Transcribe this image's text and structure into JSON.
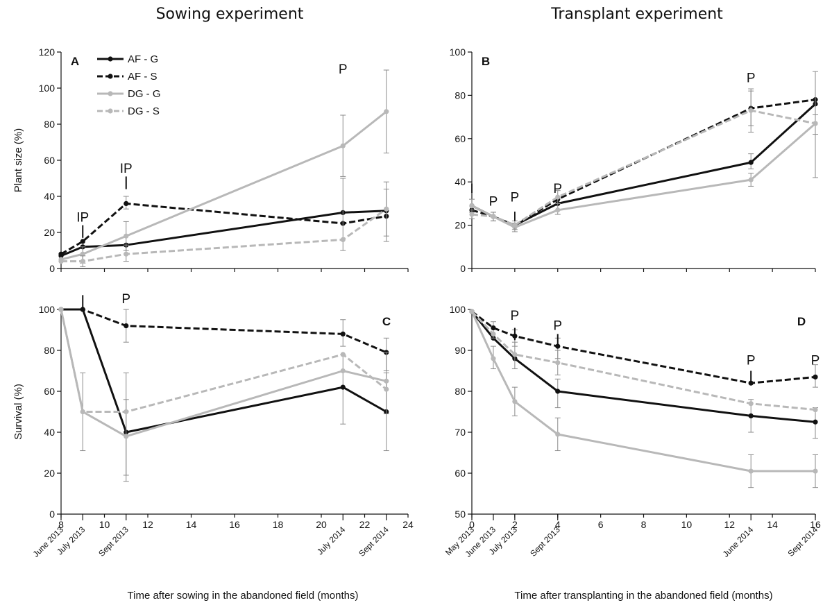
{
  "figure": {
    "left_title": "Sowing experiment",
    "right_title": "Transplant experiment",
    "colors": {
      "AF - G": "#111111",
      "AF - S": "#111111",
      "DG - G": "#b8b8b8",
      "DG - S": "#b8b8b8"
    },
    "dashed": {
      "AF - G": false,
      "AF - S": true,
      "DG - G": false,
      "DG - S": true
    },
    "legend": {
      "panel": "A",
      "placement": "top-left",
      "entries": [
        "AF - G",
        "AF - S",
        "DG - G",
        "DG - S"
      ]
    }
  },
  "chart_data": [
    {
      "panel": "A",
      "type": "line",
      "title": "",
      "xlabel": "",
      "ylabel": "Plant size (%)",
      "xlim": [
        8,
        24
      ],
      "ylim": [
        0,
        120
      ],
      "yticks": [
        0,
        20,
        40,
        60,
        80,
        100,
        120
      ],
      "xticks": [
        8,
        10,
        12,
        14,
        16,
        18,
        20,
        22,
        24
      ],
      "show_xticklabels": false,
      "date_ticks": [],
      "series": [
        {
          "name": "AF - G",
          "points": [
            [
              8,
              7
            ],
            [
              9,
              12
            ],
            [
              11,
              13
            ],
            [
              21,
              31
            ],
            [
              23,
              32
            ]
          ],
          "err": [
            [],
            [],
            [],
            [],
            []
          ]
        },
        {
          "name": "AF - S",
          "points": [
            [
              8,
              8
            ],
            [
              9,
              15
            ],
            [
              11,
              36
            ],
            [
              21,
              25
            ],
            [
              23,
              29
            ]
          ],
          "err": [
            [],
            [],
            [
              33,
              40
            ],
            [],
            [
              15,
              44
            ]
          ]
        },
        {
          "name": "DG - G",
          "points": [
            [
              8,
              5
            ],
            [
              9,
              8
            ],
            [
              11,
              18
            ],
            [
              21,
              68
            ],
            [
              23,
              87
            ]
          ],
          "err": [
            [],
            [
              3,
              12
            ],
            [
              10,
              26
            ],
            [
              51,
              85
            ],
            [
              64,
              110
            ]
          ]
        },
        {
          "name": "DG - S",
          "points": [
            [
              8,
              4
            ],
            [
              9,
              4
            ],
            [
              11,
              8
            ],
            [
              21,
              16
            ],
            [
              23,
              33
            ]
          ],
          "err": [
            [],
            [
              1,
              7
            ],
            [
              4,
              13
            ],
            [
              10,
              50
            ],
            [
              18,
              48
            ]
          ]
        }
      ],
      "annotations": [
        {
          "x": 9,
          "label": "IP",
          "y": 26
        },
        {
          "x": 11,
          "label": "IP",
          "y": 53
        },
        {
          "x": 21,
          "label": "P",
          "y": 108
        }
      ],
      "ticks_marks": [
        {
          "x": 9,
          "y1": 17,
          "y2": 24
        },
        {
          "x": 11,
          "y1": 44,
          "y2": 51
        }
      ]
    },
    {
      "panel": "B",
      "type": "line",
      "title": "",
      "xlabel": "",
      "ylabel": "",
      "xlim": [
        0,
        16
      ],
      "ylim": [
        0,
        100
      ],
      "yticks": [
        0,
        20,
        40,
        60,
        80,
        100
      ],
      "xticks": [
        0,
        2,
        4,
        6,
        8,
        10,
        12,
        14,
        16
      ],
      "show_xticklabels": false,
      "date_ticks": [],
      "series": [
        {
          "name": "AF - G",
          "points": [
            [
              0,
              29
            ],
            [
              1,
              24
            ],
            [
              2,
              20
            ],
            [
              4,
              30
            ],
            [
              13,
              49
            ],
            [
              16,
              76
            ]
          ],
          "err": [
            [],
            [],
            [],
            [],
            [
              46,
              53
            ],
            []
          ]
        },
        {
          "name": "AF - S",
          "points": [
            [
              0,
              27
            ],
            [
              1,
              24
            ],
            [
              2,
              20
            ],
            [
              4,
              32
            ],
            [
              13,
              74
            ],
            [
              16,
              78
            ]
          ],
          "err": [
            [],
            [],
            [],
            [],
            [
              66,
              82
            ],
            []
          ]
        },
        {
          "name": "DG - G",
          "points": [
            [
              0,
              29
            ],
            [
              1,
              24
            ],
            [
              2,
              19
            ],
            [
              4,
              27
            ],
            [
              13,
              41
            ],
            [
              16,
              67
            ]
          ],
          "err": [
            [
              26,
              32
            ],
            [
              22,
              26
            ],
            [
              17,
              21
            ],
            [
              25,
              30
            ],
            [
              38,
              44
            ],
            [
              62,
              71
            ]
          ]
        },
        {
          "name": "DG - S",
          "points": [
            [
              0,
              25
            ],
            [
              1,
              24
            ],
            [
              2,
              20
            ],
            [
              4,
              33
            ],
            [
              13,
              73
            ],
            [
              16,
              67
            ]
          ],
          "err": [
            [
              23,
              27
            ],
            [
              22,
              26
            ],
            [
              18,
              22
            ],
            [
              30,
              36
            ],
            [
              63,
              83
            ],
            [
              42,
              91
            ]
          ]
        }
      ],
      "annotations": [
        {
          "x": 0,
          "label": "I",
          "y": 35
        },
        {
          "x": 1,
          "label": "P",
          "y": 29
        },
        {
          "x": 2,
          "label": "P",
          "y": 31
        },
        {
          "x": 2,
          "label": "I",
          "y": 22
        },
        {
          "x": 4,
          "label": "P",
          "y": 35
        },
        {
          "x": 13,
          "label": "P",
          "y": 86
        }
      ],
      "ticks_marks": []
    },
    {
      "panel": "C",
      "type": "line",
      "title": "",
      "xlabel": "Time after sowing in the abandoned field (months)",
      "ylabel": "Survival (%)",
      "xlim": [
        8,
        24
      ],
      "ylim": [
        0,
        100
      ],
      "yticks": [
        0,
        20,
        40,
        60,
        80,
        100
      ],
      "xticks": [
        8,
        10,
        12,
        14,
        16,
        18,
        20,
        22,
        24
      ],
      "show_xticklabels": true,
      "date_ticks": [
        {
          "x": 8,
          "label": "June 2013"
        },
        {
          "x": 9,
          "label": "July 2013"
        },
        {
          "x": 11,
          "label": "Sept 2013"
        },
        {
          "x": 21,
          "label": "July 2014"
        },
        {
          "x": 23,
          "label": "Sept 2014"
        }
      ],
      "series": [
        {
          "name": "AF - G",
          "points": [
            [
              8,
              100
            ],
            [
              9,
              100
            ],
            [
              11,
              40
            ],
            [
              21,
              62
            ],
            [
              23,
              50
            ]
          ],
          "err": [
            [],
            [],
            [
              19,
              69
            ],
            [
              44,
              78
            ],
            [
              31,
              69
            ]
          ]
        },
        {
          "name": "AF - S",
          "points": [
            [
              8,
              100
            ],
            [
              9,
              100
            ],
            [
              11,
              92
            ],
            [
              21,
              88
            ],
            [
              23,
              79
            ]
          ],
          "err": [
            [],
            [],
            [
              84,
              100
            ],
            [
              82,
              95
            ],
            [
              70,
              86
            ]
          ]
        },
        {
          "name": "DG - G",
          "points": [
            [
              8,
              100
            ],
            [
              9,
              50
            ],
            [
              11,
              38
            ],
            [
              21,
              70
            ],
            [
              23,
              65
            ]
          ],
          "err": [
            [],
            [
              31,
              69
            ],
            [
              16,
              56
            ],
            [],
            [
              49,
              79
            ]
          ]
        },
        {
          "name": "DG - S",
          "points": [
            [
              8,
              100
            ],
            [
              9,
              50
            ],
            [
              11,
              50
            ],
            [
              21,
              78
            ],
            [
              23,
              61
            ]
          ],
          "err": [
            [],
            [],
            [],
            [],
            []
          ]
        }
      ],
      "annotations": [
        {
          "x": 11,
          "label": "P",
          "y": 103
        }
      ],
      "ticks_marks": [
        {
          "x": 9,
          "y1": 101,
          "y2": 107
        }
      ]
    },
    {
      "panel": "D",
      "type": "line",
      "title": "",
      "xlabel": "Time after transplanting in the abandoned field (months)",
      "ylabel": "",
      "xlim": [
        0,
        16
      ],
      "ylim": [
        50,
        100
      ],
      "yticks": [
        50,
        60,
        70,
        80,
        90,
        100
      ],
      "xticks": [
        0,
        2,
        4,
        6,
        8,
        10,
        12,
        14,
        16
      ],
      "show_xticklabels": true,
      "date_ticks": [
        {
          "x": 0,
          "label": "May 2013"
        },
        {
          "x": 1,
          "label": "June 2013"
        },
        {
          "x": 2,
          "label": "July 2013"
        },
        {
          "x": 4,
          "label": "Sept 2013"
        },
        {
          "x": 13,
          "label": "June 2014"
        },
        {
          "x": 16,
          "label": "Sept 2014"
        }
      ],
      "series": [
        {
          "name": "AF - G",
          "points": [
            [
              0,
              99.5
            ],
            [
              1,
              93
            ],
            [
              2,
              88
            ],
            [
              4,
              80
            ],
            [
              13,
              74
            ],
            [
              16,
              72.5
            ]
          ],
          "err": [
            [],
            [],
            [],
            [
              76,
              83
            ],
            [
              70,
              78
            ],
            [
              68.5,
              76
            ]
          ]
        },
        {
          "name": "AF - S",
          "points": [
            [
              0,
              99.5
            ],
            [
              1,
              95.5
            ],
            [
              2,
              93.5
            ],
            [
              4,
              91
            ],
            [
              13,
              82
            ],
            [
              16,
              83.5
            ]
          ],
          "err": [
            [],
            [
              93,
              97
            ],
            [
              91,
              95
            ],
            [
              88,
              93
            ],
            [],
            [
              81,
              86.5
            ]
          ]
        },
        {
          "name": "DG - G",
          "points": [
            [
              0,
              99.5
            ],
            [
              1,
              88
            ],
            [
              2,
              77.5
            ],
            [
              4,
              69.5
            ],
            [
              13,
              60.5
            ],
            [
              16,
              60.5
            ]
          ],
          "err": [
            [],
            [
              85.5,
              91
            ],
            [
              74,
              81
            ],
            [
              65.5,
              73.5
            ],
            [
              56.5,
              64.5
            ],
            [
              56.5,
              64.5
            ]
          ]
        },
        {
          "name": "DG - S",
          "points": [
            [
              0,
              99.5
            ],
            [
              1,
              94
            ],
            [
              2,
              89
            ],
            [
              4,
              87
            ],
            [
              13,
              77
            ],
            [
              16,
              75.5
            ]
          ],
          "err": [
            [],
            [],
            [
              85.5,
              92
            ],
            [
              84,
              90
            ],
            [],
            []
          ]
        }
      ],
      "annotations": [
        {
          "x": 2,
          "label": "P",
          "y": 97.5
        },
        {
          "x": 4,
          "label": "P",
          "y": 95
        },
        {
          "x": 13,
          "label": "P",
          "y": 86.5
        },
        {
          "x": 16,
          "label": "P",
          "y": 86.5
        }
      ],
      "ticks_marks": [
        {
          "x": 2,
          "y1": 92.5,
          "y2": 95.5
        },
        {
          "x": 4,
          "y1": 91.5,
          "y2": 94
        },
        {
          "x": 13,
          "y1": 82.5,
          "y2": 85
        }
      ]
    }
  ]
}
